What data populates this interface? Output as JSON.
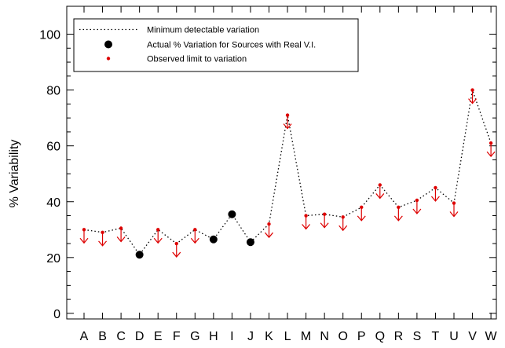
{
  "chart_data": {
    "type": "scatter",
    "title": "",
    "xlabel": "",
    "ylabel": "% Variability",
    "ylim": [
      -2,
      110
    ],
    "yticks": [
      0,
      20,
      40,
      60,
      80,
      100
    ],
    "categories": [
      "A",
      "B",
      "C",
      "D",
      "E",
      "F",
      "G",
      "H",
      "I",
      "J",
      "K",
      "L",
      "M",
      "N",
      "O",
      "P",
      "Q",
      "R",
      "S",
      "T",
      "U",
      "V",
      "W"
    ],
    "grid": false,
    "legend_position": "top-left",
    "colors": {
      "line": "#000000",
      "actual": "#000000",
      "limit": "#dd0000"
    },
    "series": [
      {
        "name": "Minimum detectable variation",
        "style": "dotted-line",
        "values": [
          30,
          29,
          30.5,
          21,
          30,
          25,
          30,
          26.5,
          35.5,
          25.5,
          32,
          71,
          35,
          35.5,
          34.5,
          38,
          46,
          38,
          40.5,
          45,
          39.5,
          80,
          61
        ]
      },
      {
        "name": "Actual % Variation for Sources with Real V.I.",
        "style": "filled-circle",
        "points": [
          {
            "category": "D",
            "value": 21
          },
          {
            "category": "H",
            "value": 26.5
          },
          {
            "category": "I",
            "value": 35.5
          },
          {
            "category": "J",
            "value": 25.5
          }
        ]
      },
      {
        "name": "Observed limit to variation",
        "style": "dot-with-down-arrow",
        "points": [
          {
            "category": "A",
            "value": 30
          },
          {
            "category": "B",
            "value": 29
          },
          {
            "category": "C",
            "value": 30.5
          },
          {
            "category": "E",
            "value": 30
          },
          {
            "category": "F",
            "value": 25
          },
          {
            "category": "G",
            "value": 30
          },
          {
            "category": "K",
            "value": 32
          },
          {
            "category": "L",
            "value": 71
          },
          {
            "category": "M",
            "value": 35
          },
          {
            "category": "N",
            "value": 35.5
          },
          {
            "category": "O",
            "value": 34.5
          },
          {
            "category": "P",
            "value": 38
          },
          {
            "category": "Q",
            "value": 46
          },
          {
            "category": "R",
            "value": 38
          },
          {
            "category": "S",
            "value": 40.5
          },
          {
            "category": "T",
            "value": 45
          },
          {
            "category": "U",
            "value": 39.5
          },
          {
            "category": "V",
            "value": 80
          },
          {
            "category": "W",
            "value": 61
          }
        ]
      }
    ]
  }
}
